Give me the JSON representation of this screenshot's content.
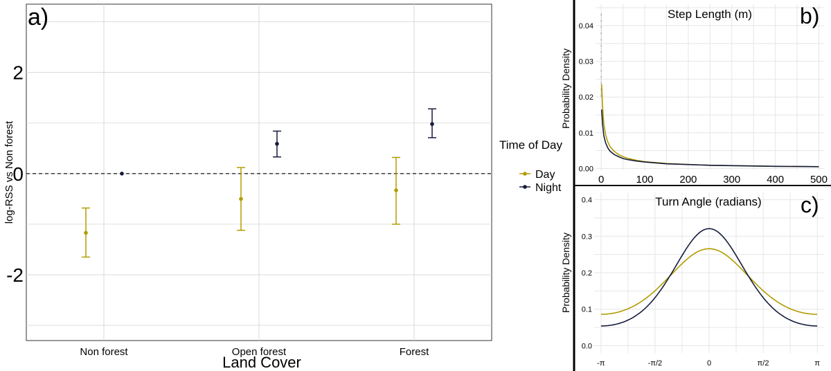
{
  "colors": {
    "day": "#b29c00",
    "night": "#141b3c",
    "grid": "#d8d8d8",
    "divider": "#000000"
  },
  "chart_data": [
    {
      "panel_label": "a)",
      "type": "scatter",
      "xlabel": "Land Cover",
      "ylabel": "log-RSS vs Non forest",
      "categories": [
        "Non forest",
        "Open forest",
        "Forest"
      ],
      "yticks": [
        "-2",
        "0",
        "2"
      ],
      "ylim": [
        -3.3,
        3.35
      ],
      "reference_line": 0,
      "series": [
        {
          "name": "Day",
          "points": [
            {
              "category": "Non forest",
              "y": -1.17,
              "low": -1.65,
              "high": -0.68
            },
            {
              "category": "Open forest",
              "y": -0.5,
              "low": -1.12,
              "high": 0.12
            },
            {
              "category": "Forest",
              "y": -0.33,
              "low": -1.0,
              "high": 0.32
            }
          ]
        },
        {
          "name": "Night",
          "points": [
            {
              "category": "Non forest",
              "y": 0.0,
              "low": 0.0,
              "high": 0.0
            },
            {
              "category": "Open forest",
              "y": 0.59,
              "low": 0.33,
              "high": 0.84
            },
            {
              "category": "Forest",
              "y": 0.98,
              "low": 0.71,
              "high": 1.28
            }
          ]
        }
      ]
    },
    {
      "panel_label": "b)",
      "type": "line",
      "title": "Step Length (m)",
      "ylabel": "Probability Density",
      "xticks": [
        "0",
        "100",
        "200",
        "300",
        "400",
        "500"
      ],
      "yticks": [
        "0.00",
        "0.01",
        "0.02",
        "0.03",
        "0.04"
      ],
      "xlim": [
        -13,
        512
      ],
      "ylim": [
        -0.0005,
        0.046
      ],
      "series": [
        {
          "name": "Day",
          "x": [
            1,
            3,
            6,
            10,
            15,
            20,
            30,
            40,
            50,
            60,
            80,
            100,
            150,
            200,
            250,
            300,
            400,
            500
          ],
          "y": [
            0.0235,
            0.0175,
            0.0125,
            0.0095,
            0.0075,
            0.0062,
            0.0048,
            0.0039,
            0.0033,
            0.0029,
            0.0023,
            0.0019,
            0.0014,
            0.0011,
            0.0009,
            0.0008,
            0.0006,
            0.0005
          ]
        },
        {
          "name": "Night",
          "x": [
            1,
            3,
            6,
            10,
            15,
            20,
            30,
            40,
            50,
            60,
            80,
            100,
            150,
            200,
            250,
            300,
            400,
            500
          ],
          "y": [
            0.0165,
            0.0125,
            0.0092,
            0.0072,
            0.0058,
            0.0049,
            0.0039,
            0.0033,
            0.0028,
            0.0025,
            0.0021,
            0.0018,
            0.0013,
            0.0011,
            0.0009,
            0.0008,
            0.0006,
            0.0005
          ]
        }
      ],
      "peak_spike": {
        "x": 0,
        "y": 0.0435
      }
    },
    {
      "panel_label": "c)",
      "type": "line",
      "title": "Turn Angle (radians)",
      "ylabel": "Probability Density",
      "xticks": [
        "-π",
        "-π/2",
        "0",
        "π/2",
        "π"
      ],
      "yticks": [
        "0.0",
        "0.1",
        "0.2",
        "0.3",
        "0.4"
      ],
      "xlim": [
        -3.34,
        3.34
      ],
      "ylim": [
        -0.02,
        0.42
      ],
      "series": [
        {
          "name": "Day",
          "kappa": 0.58,
          "offset": 0.004
        },
        {
          "name": "Night",
          "kappa": 0.89,
          "offset": 0.0
        }
      ]
    }
  ],
  "legend": {
    "title": "Time of Day",
    "items": [
      {
        "label": "Day",
        "series": "Day"
      },
      {
        "label": "Night",
        "series": "Night"
      }
    ]
  }
}
